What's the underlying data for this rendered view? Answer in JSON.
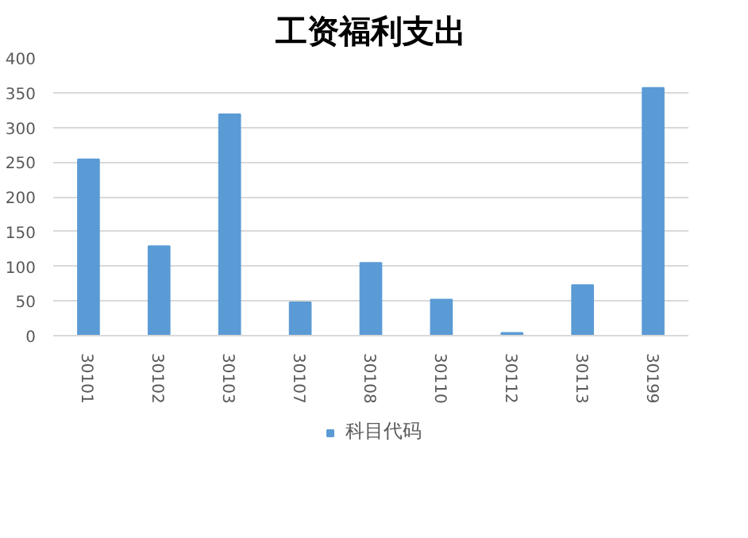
{
  "chart_data": {
    "type": "bar",
    "title": "工资福利支出",
    "categories": [
      "30101",
      "30102",
      "30103",
      "30107",
      "30108",
      "30110",
      "30112",
      "30113",
      "30199"
    ],
    "series": [
      {
        "name": "科目代码",
        "color": "#5b9bd5",
        "values": [
          254,
          129,
          319,
          48,
          105,
          52,
          4,
          73,
          357
        ]
      }
    ],
    "ylim": [
      0,
      400
    ],
    "yticks": [
      0,
      50,
      100,
      150,
      200,
      250,
      300,
      350,
      400
    ],
    "grid": "y",
    "legend": "bottom"
  }
}
